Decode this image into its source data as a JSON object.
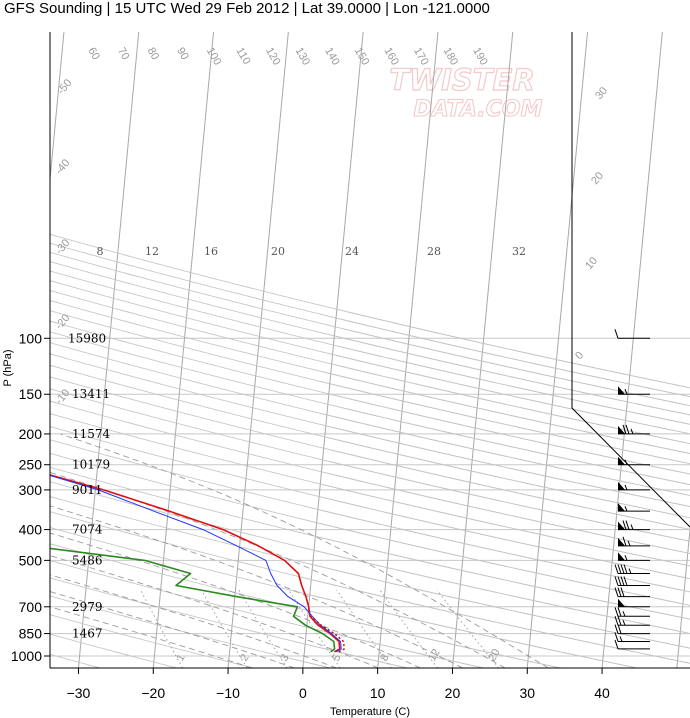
{
  "title": "GFS Sounding | 15 UTC Wed 29 Feb 2012 | Lat 39.0000 | Lon -121.0000",
  "watermark": {
    "line1": "TWISTER",
    "line2": "DATA.COM"
  },
  "colors": {
    "temperature": "#e01010",
    "dewpoint": "#2a8a1e",
    "virtual_temperature": "#2233ff",
    "parcel": "#c00000",
    "grid": "#c8c8c8",
    "isotherm": "#a8a8a8"
  },
  "chart_data": {
    "type": "line",
    "title": "GFS Sounding | 15 UTC Wed 29 Feb 2012 | Lat 39.0000 | Lon -121.0000",
    "xlabel": "Temperature (C)",
    "ylabel": "P (hPa)",
    "xlim": [
      -34,
      47
    ],
    "ylim": [
      1050,
      100
    ],
    "y_scale": "log",
    "pressure_ticks": [
      100,
      150,
      200,
      250,
      300,
      400,
      500,
      700,
      850,
      1000
    ],
    "temperature_ticks": [
      -30,
      -20,
      -10,
      0,
      10,
      20,
      30,
      40
    ],
    "heights": [
      {
        "p": 100,
        "z": "15980"
      },
      {
        "p": 150,
        "z": "13411"
      },
      {
        "p": 200,
        "z": "11574"
      },
      {
        "p": 250,
        "z": "10179"
      },
      {
        "p": 300,
        "z": "9011"
      },
      {
        "p": 400,
        "z": "7074"
      },
      {
        "p": 500,
        "z": "5486"
      },
      {
        "p": 700,
        "z": "2979"
      },
      {
        "p": 850,
        "z": "1467"
      }
    ],
    "isotherm_labels": [
      "-50",
      "-40",
      "-30",
      "-20",
      "-10",
      "0",
      "10",
      "20",
      "30"
    ],
    "mixing_ratio_labels": [
      "8",
      "12",
      "16",
      "20",
      "24",
      "28",
      "32"
    ],
    "dry_adiabat_labels": [
      "60",
      "70",
      "80",
      "90",
      "100",
      "110",
      "120",
      "130",
      "140",
      "150",
      "160",
      "170",
      "180",
      "190"
    ],
    "moist_adiabat_labels": [
      "1",
      "2",
      "3",
      "5",
      "8",
      "12",
      "20"
    ],
    "series": [
      {
        "name": "Temperature",
        "points": [
          {
            "p": 970,
            "t": 4.0
          },
          {
            "p": 950,
            "t": 4.7
          },
          {
            "p": 900,
            "t": 4.5
          },
          {
            "p": 850,
            "t": 3.2
          },
          {
            "p": 800,
            "t": 1.5
          },
          {
            "p": 750,
            "t": 0.3
          },
          {
            "p": 700,
            "t": 0.0
          },
          {
            "p": 650,
            "t": -0.5
          },
          {
            "p": 600,
            "t": -1.2
          },
          {
            "p": 550,
            "t": -1.8
          },
          {
            "p": 500,
            "t": -3.8
          },
          {
            "p": 450,
            "t": -7.5
          },
          {
            "p": 400,
            "t": -12.4
          },
          {
            "p": 350,
            "t": -19.8
          },
          {
            "p": 300,
            "t": -28.9
          },
          {
            "p": 250,
            "t": -41.3
          },
          {
            "p": 200,
            "t": -47.3
          },
          {
            "p": 150,
            "t": -50.6
          },
          {
            "p": 100,
            "t": -65.4
          }
        ]
      },
      {
        "name": "Virtual Temperature",
        "points": [
          {
            "p": 970,
            "t": 4.2
          },
          {
            "p": 950,
            "t": 4.9
          },
          {
            "p": 900,
            "t": 4.7
          },
          {
            "p": 850,
            "t": 3.4
          },
          {
            "p": 800,
            "t": 1.8
          },
          {
            "p": 750,
            "t": 0.6
          },
          {
            "p": 700,
            "t": -0.6
          },
          {
            "p": 650,
            "t": -2.9
          },
          {
            "p": 600,
            "t": -4.5
          },
          {
            "p": 550,
            "t": -5.5
          },
          {
            "p": 500,
            "t": -6.3
          },
          {
            "p": 450,
            "t": -10.4
          },
          {
            "p": 400,
            "t": -15.1
          },
          {
            "p": 350,
            "t": -21.9
          },
          {
            "p": 300,
            "t": -29.6
          },
          {
            "p": 250,
            "t": -41.2
          },
          {
            "p": 200,
            "t": -47.8
          },
          {
            "p": 150,
            "t": -51.5
          },
          {
            "p": 100,
            "t": -68.9
          }
        ]
      },
      {
        "name": "Dewpoint",
        "points": [
          {
            "p": 970,
            "t": 3.5
          },
          {
            "p": 950,
            "t": 4.0
          },
          {
            "p": 900,
            "t": 3.8
          },
          {
            "p": 850,
            "t": 2.2
          },
          {
            "p": 800,
            "t": -0.2
          },
          {
            "p": 750,
            "t": -1.9
          },
          {
            "p": 700,
            "t": -1.5
          },
          {
            "p": 650,
            "t": -9.8
          },
          {
            "p": 600,
            "t": -18.0
          },
          {
            "p": 550,
            "t": -16.2
          },
          {
            "p": 500,
            "t": -22.5
          },
          {
            "p": 450,
            "t": -38.2
          },
          {
            "p": 400,
            "t": -49.3
          },
          {
            "p": 350,
            "t": -54.1
          },
          {
            "p": 300,
            "t": -58.3
          },
          {
            "p": 250,
            "t": -68.1
          },
          {
            "p": 200,
            "t": -71.0
          },
          {
            "p": 150,
            "t": -78.0
          },
          {
            "p": 100,
            "t": -95.0
          }
        ]
      },
      {
        "name": "Parcel",
        "dashed": true,
        "points": [
          {
            "p": 970,
            "t": 4.6
          },
          {
            "p": 950,
            "t": 5.3
          },
          {
            "p": 900,
            "t": 5.1
          },
          {
            "p": 850,
            "t": 3.8
          },
          {
            "p": 800,
            "t": 1.9
          },
          {
            "p": 750,
            "t": 0.4
          }
        ]
      }
    ],
    "wind_barbs": [
      {
        "p": 100,
        "kt": 10
      },
      {
        "p": 150,
        "kt": 55
      },
      {
        "p": 200,
        "kt": 75
      },
      {
        "p": 250,
        "kt": 55
      },
      {
        "p": 300,
        "kt": 55
      },
      {
        "p": 350,
        "kt": 55
      },
      {
        "p": 400,
        "kt": 75
      },
      {
        "p": 450,
        "kt": 65
      },
      {
        "p": 500,
        "kt": 55
      },
      {
        "p": 550,
        "kt": 45
      },
      {
        "p": 600,
        "kt": 40
      },
      {
        "p": 650,
        "kt": 30
      },
      {
        "p": 700,
        "kt": 50
      },
      {
        "p": 750,
        "kt": 25
      },
      {
        "p": 800,
        "kt": 25
      },
      {
        "p": 850,
        "kt": 20
      },
      {
        "p": 900,
        "kt": 15
      },
      {
        "p": 950,
        "kt": 10
      }
    ]
  }
}
